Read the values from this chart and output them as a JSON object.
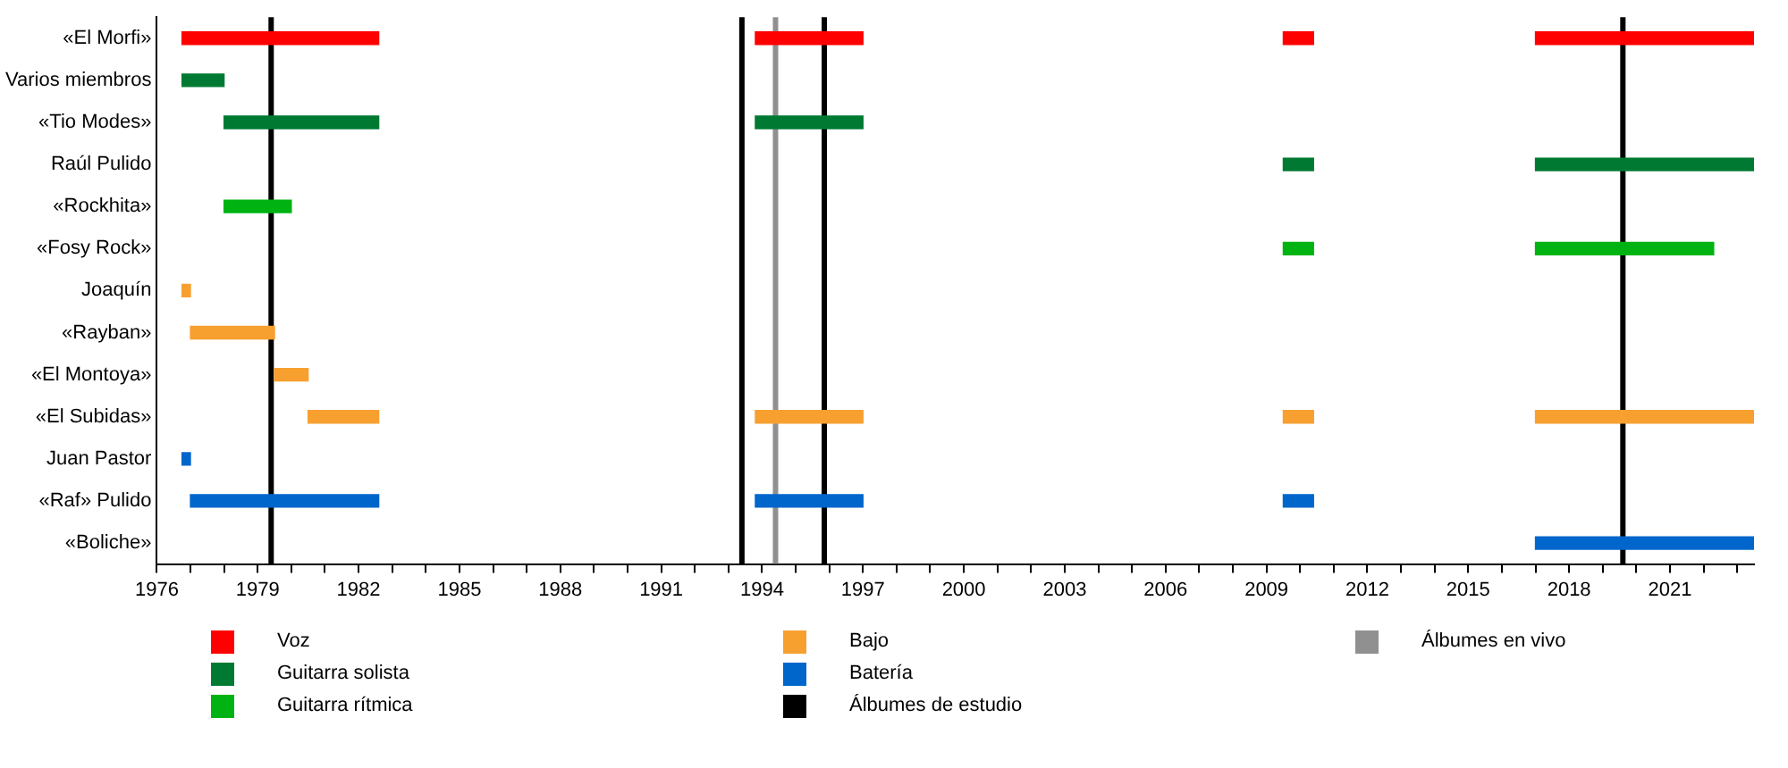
{
  "chart_data": {
    "type": "bar",
    "orientation": "horizontal",
    "legend": "bottom",
    "grid": false,
    "categories": [
      "«El Morfi»",
      "Varios miembros",
      "«Tio Modes»",
      "Raúl Pulido",
      "«Rockhita»",
      "«Fosy Rock»",
      "Joaquín",
      "«Rayban»",
      "«El Montoya»",
      "«El Subidas»",
      "Juan Pastor",
      "«Raf» Pulido",
      "«Boliche»"
    ],
    "xlim": [
      1976,
      2023.5
    ],
    "xticks": [
      1976,
      {
        "value": 1977,
        "label": null
      },
      {
        "value": 1978,
        "label": null
      },
      1979,
      {
        "value": 1980,
        "label": null
      },
      {
        "value": 1981,
        "label": null
      },
      1982,
      {
        "value": 1983,
        "label": null
      },
      {
        "value": 1984,
        "label": null
      },
      1985,
      {
        "value": 1986,
        "label": null
      },
      {
        "value": 1987,
        "label": null
      },
      1988,
      {
        "value": 1989,
        "label": null
      },
      {
        "value": 1990,
        "label": null
      },
      1991,
      {
        "value": 1992,
        "label": null
      },
      {
        "value": 1993,
        "label": null
      },
      1994,
      {
        "value": 1995,
        "label": null
      },
      {
        "value": 1996,
        "label": null
      },
      1997,
      {
        "value": 1998,
        "label": null
      },
      {
        "value": 1999,
        "label": null
      },
      2000,
      {
        "value": 2001,
        "label": null
      },
      {
        "value": 2002,
        "label": null
      },
      2003,
      {
        "value": 2004,
        "label": null
      },
      {
        "value": 2005,
        "label": null
      },
      2006,
      {
        "value": 2007,
        "label": null
      },
      {
        "value": 2008,
        "label": null
      },
      2009,
      {
        "value": 2010,
        "label": null
      },
      {
        "value": 2011,
        "label": null
      },
      2012,
      {
        "value": 2013,
        "label": null
      },
      {
        "value": 2014,
        "label": null
      },
      2015,
      {
        "value": 2016,
        "label": null
      },
      {
        "value": 2017,
        "label": null
      },
      2018,
      {
        "value": 2019,
        "label": null
      },
      {
        "value": 2020,
        "label": null
      },
      2021,
      {
        "value": 2022,
        "label": null
      },
      {
        "value": 2023,
        "label": null
      }
    ],
    "series": [
      {
        "name": "Voz",
        "color": "#ff0000",
        "base": [
          1976.75,
          null,
          null,
          null,
          null,
          null,
          null,
          null,
          null,
          null,
          null,
          null,
          null
        ],
        "values": [
          5.85,
          null,
          null,
          null,
          null,
          null,
          null,
          null,
          null,
          null,
          null,
          null,
          null
        ]
      },
      {
        "color": "#ff0000",
        "base": [
          1993.8,
          null,
          null,
          null,
          null,
          null,
          null,
          null,
          null,
          null,
          null,
          null,
          null
        ],
        "values": [
          3.2,
          null,
          null,
          null,
          null,
          null,
          null,
          null,
          null,
          null,
          null,
          null,
          null
        ]
      },
      {
        "color": "#ff0000",
        "base": [
          2009.5,
          null,
          null,
          null,
          null,
          null,
          null,
          null,
          null,
          null,
          null,
          null,
          null
        ],
        "values": [
          0.9,
          null,
          null,
          null,
          null,
          null,
          null,
          null,
          null,
          null,
          null,
          null,
          null
        ]
      },
      {
        "color": "#ff0000",
        "base": [
          2017,
          null,
          null,
          null,
          null,
          null,
          null,
          null,
          null,
          null,
          null,
          null,
          null
        ],
        "values": [
          6.5,
          null,
          null,
          null,
          null,
          null,
          null,
          null,
          null,
          null,
          null,
          null,
          null
        ]
      },
      {
        "name": "Guitarra solista",
        "color": "#007a33",
        "base": [
          null,
          1976.75,
          1978,
          null,
          null,
          null,
          null,
          null,
          null,
          null,
          null,
          null,
          null
        ],
        "values": [
          null,
          1.25,
          4.6,
          null,
          null,
          null,
          null,
          null,
          null,
          null,
          null,
          null,
          null
        ]
      },
      {
        "color": "#007a33",
        "base": [
          null,
          null,
          1993.8,
          null,
          null,
          null,
          null,
          null,
          null,
          null,
          null,
          null,
          null
        ],
        "values": [
          null,
          null,
          3.2,
          null,
          null,
          null,
          null,
          null,
          null,
          null,
          null,
          null,
          null
        ]
      },
      {
        "color": "#007a33",
        "base": [
          null,
          null,
          null,
          2009.5,
          null,
          null,
          null,
          null,
          null,
          null,
          null,
          null,
          null
        ],
        "values": [
          null,
          null,
          null,
          0.9,
          null,
          null,
          null,
          null,
          null,
          null,
          null,
          null,
          null
        ]
      },
      {
        "color": "#007a33",
        "base": [
          null,
          null,
          null,
          2017,
          null,
          null,
          null,
          null,
          null,
          null,
          null,
          null,
          null
        ],
        "values": [
          null,
          null,
          null,
          6.5,
          null,
          null,
          null,
          null,
          null,
          null,
          null,
          null,
          null
        ]
      },
      {
        "name": "Guitarra rítmica",
        "color": "#00b312",
        "base": [
          null,
          null,
          null,
          null,
          1978,
          null,
          null,
          null,
          null,
          null,
          null,
          null,
          null
        ],
        "values": [
          null,
          null,
          null,
          null,
          2,
          null,
          null,
          null,
          null,
          null,
          null,
          null,
          null
        ]
      },
      {
        "color": "#00b312",
        "base": [
          null,
          null,
          null,
          null,
          null,
          2009.5,
          null,
          null,
          null,
          null,
          null,
          null,
          null
        ],
        "values": [
          null,
          null,
          null,
          null,
          null,
          0.9,
          null,
          null,
          null,
          null,
          null,
          null,
          null
        ]
      },
      {
        "color": "#00b312",
        "base": [
          null,
          null,
          null,
          null,
          null,
          2017,
          null,
          null,
          null,
          null,
          null,
          null,
          null
        ],
        "values": [
          null,
          null,
          null,
          null,
          null,
          5.3,
          null,
          null,
          null,
          null,
          null,
          null,
          null
        ]
      },
      {
        "name": "Bajo",
        "color": "#f7a030",
        "base": [
          null,
          null,
          null,
          null,
          null,
          null,
          1976.75,
          1977,
          1979.5,
          1980.5,
          null,
          null,
          null
        ],
        "values": [
          null,
          null,
          null,
          null,
          null,
          null,
          0.25,
          2.5,
          1,
          2.1,
          null,
          null,
          null
        ]
      },
      {
        "color": "#f7a030",
        "base": [
          null,
          null,
          null,
          null,
          null,
          null,
          null,
          null,
          null,
          1993.8,
          null,
          null,
          null
        ],
        "values": [
          null,
          null,
          null,
          null,
          null,
          null,
          null,
          null,
          null,
          3.2,
          null,
          null,
          null
        ]
      },
      {
        "color": "#f7a030",
        "base": [
          null,
          null,
          null,
          null,
          null,
          null,
          null,
          null,
          null,
          2009.5,
          null,
          null,
          null
        ],
        "values": [
          null,
          null,
          null,
          null,
          null,
          null,
          null,
          null,
          null,
          0.9,
          null,
          null,
          null
        ]
      },
      {
        "color": "#f7a030",
        "base": [
          null,
          null,
          null,
          null,
          null,
          null,
          null,
          null,
          null,
          2017,
          null,
          null,
          null
        ],
        "values": [
          null,
          null,
          null,
          null,
          null,
          null,
          null,
          null,
          null,
          6.5,
          null,
          null,
          null
        ]
      },
      {
        "name": "Batería",
        "color": "#0066cc",
        "base": [
          null,
          null,
          null,
          null,
          null,
          null,
          null,
          null,
          null,
          null,
          1976.75,
          1977,
          null
        ],
        "values": [
          null,
          null,
          null,
          null,
          null,
          null,
          null,
          null,
          null,
          null,
          0.25,
          5.6,
          null
        ]
      },
      {
        "color": "#0066cc",
        "base": [
          null,
          null,
          null,
          null,
          null,
          null,
          null,
          null,
          null,
          null,
          null,
          1993.8,
          null
        ],
        "values": [
          null,
          null,
          null,
          null,
          null,
          null,
          null,
          null,
          null,
          null,
          null,
          3.2,
          null
        ]
      },
      {
        "color": "#0066cc",
        "base": [
          null,
          null,
          null,
          null,
          null,
          null,
          null,
          null,
          null,
          null,
          null,
          2009.5,
          null
        ],
        "values": [
          null,
          null,
          null,
          null,
          null,
          null,
          null,
          null,
          null,
          null,
          null,
          0.9,
          null
        ]
      },
      {
        "color": "#0066cc",
        "base": [
          null,
          null,
          null,
          null,
          null,
          null,
          null,
          null,
          null,
          null,
          null,
          null,
          2017
        ],
        "values": [
          null,
          null,
          null,
          null,
          null,
          null,
          null,
          null,
          null,
          null,
          null,
          null,
          6.5
        ]
      }
    ],
    "ref_lines": [
      {
        "axis": "x",
        "value": 1979.4,
        "label": "Álbumes de estudio",
        "color": "#000000"
      },
      {
        "axis": "x",
        "value": 1993.4,
        "color": "#000000"
      },
      {
        "axis": "x",
        "value": 1995.85,
        "color": "#000000"
      },
      {
        "axis": "x",
        "value": 2019.6,
        "color": "#000000"
      },
      {
        "axis": "x",
        "value": 1994.4,
        "label": "Álbumes en vivo",
        "color": "#909090"
      }
    ]
  }
}
